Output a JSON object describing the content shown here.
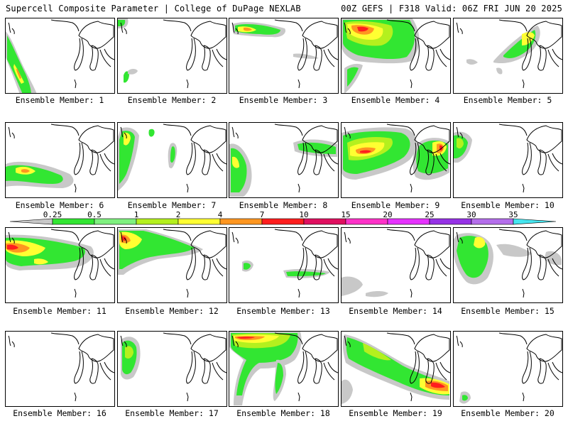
{
  "header": {
    "left": "Supercell Composite Parameter | College of DuPage NEXLAB",
    "right": "00Z GEFS | F318 Valid: 06Z FRI JUN 20 2025"
  },
  "members": [
    {
      "label": "Ensemble Member: 1"
    },
    {
      "label": "Ensemble Member: 2"
    },
    {
      "label": "Ensemble Member: 3"
    },
    {
      "label": "Ensemble Member: 4"
    },
    {
      "label": "Ensemble Member: 5"
    },
    {
      "label": "Ensemble Member: 6"
    },
    {
      "label": "Ensemble Member: 7"
    },
    {
      "label": "Ensemble Member: 8"
    },
    {
      "label": "Ensemble Member: 9"
    },
    {
      "label": "Ensemble Member: 10"
    },
    {
      "label": "Ensemble Member: 11"
    },
    {
      "label": "Ensemble Member: 12"
    },
    {
      "label": "Ensemble Member: 13"
    },
    {
      "label": "Ensemble Member: 14"
    },
    {
      "label": "Ensemble Member: 15"
    },
    {
      "label": "Ensemble Member: 16"
    },
    {
      "label": "Ensemble Member: 17"
    },
    {
      "label": "Ensemble Member: 18"
    },
    {
      "label": "Ensemble Member: 19"
    },
    {
      "label": "Ensemble Member: 20"
    }
  ],
  "colorbar": {
    "levels": [
      "0.25",
      "0.5",
      "1",
      "2",
      "4",
      "7",
      "10",
      "15",
      "20",
      "25",
      "30",
      "35"
    ],
    "colors": [
      "#c8c8c8",
      "#32e632",
      "#7ff07f",
      "#b4f01e",
      "#ffff32",
      "#ff9620",
      "#ff1e1e",
      "#e01060",
      "#ff32c8",
      "#e632ff",
      "#9632e6",
      "#b46eeb",
      "#46e6f0"
    ]
  }
}
